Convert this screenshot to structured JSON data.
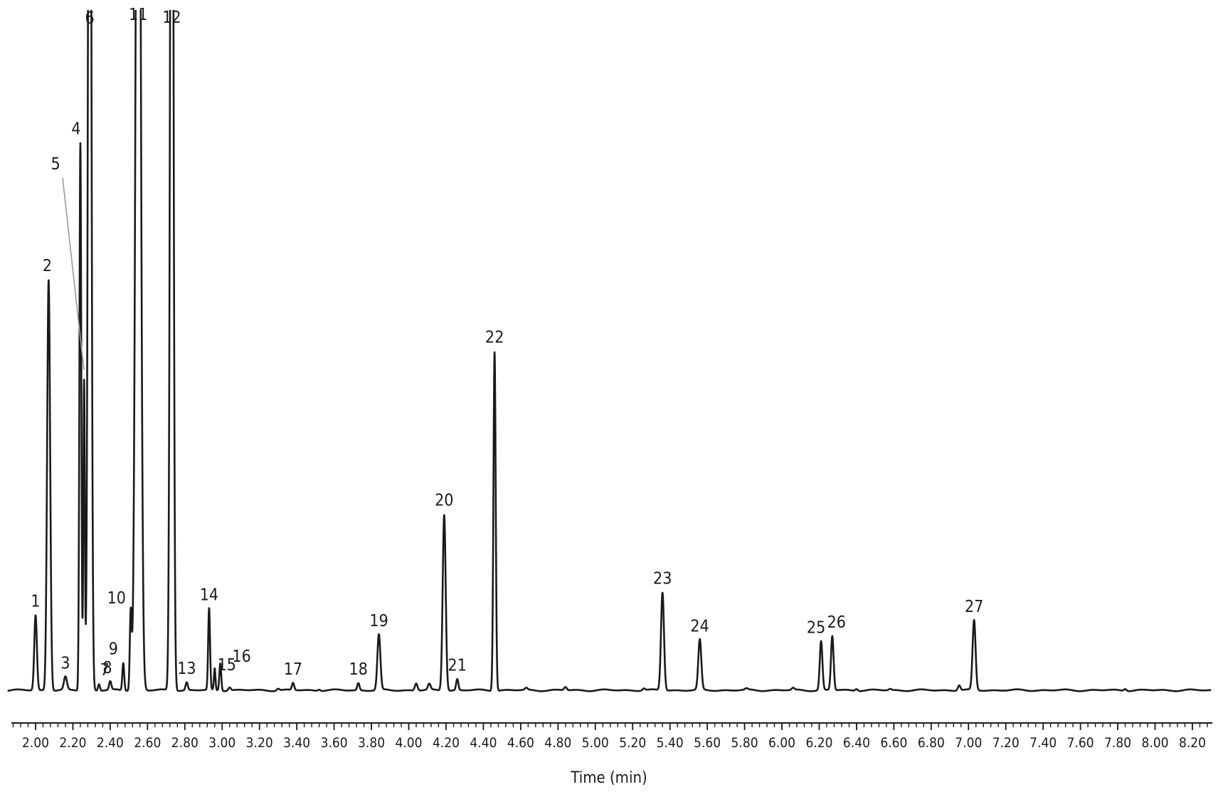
{
  "chart_data": {
    "type": "line",
    "title": "",
    "xlabel": "Time (min)",
    "ylabel": "",
    "xlim": [
      1.85,
      8.3
    ],
    "ylim": [
      0,
      100
    ],
    "grid": false,
    "legend": "none",
    "x_ticks": [
      "2.00",
      "2.20",
      "2.40",
      "2.60",
      "2.80",
      "3.00",
      "3.20",
      "3.40",
      "3.60",
      "3.80",
      "4.00",
      "4.20",
      "4.40",
      "4.60",
      "4.80",
      "5.00",
      "5.20",
      "5.40",
      "5.60",
      "5.80",
      "6.00",
      "6.20",
      "6.40",
      "6.60",
      "6.80",
      "7.00",
      "7.20",
      "7.40",
      "7.60",
      "7.80",
      "8.00",
      "8.20"
    ],
    "x_minor_step": 0.04,
    "series": [
      {
        "peaks": [
          {
            "label": "1",
            "rt": 2.0,
            "height": 11.5,
            "width": 0.007
          },
          {
            "label": "2",
            "rt": 2.07,
            "height": 63.0,
            "width": 0.008
          },
          {
            "label": "3",
            "rt": 2.16,
            "height": 2.0,
            "width": 0.008
          },
          {
            "label": "4",
            "rt": 2.24,
            "height": 84.0,
            "width": 0.005
          },
          {
            "label": "5",
            "rt": 2.26,
            "height": 47.5,
            "width": 0.004
          },
          {
            "label": "6",
            "rt": 2.29,
            "height": 200,
            "width": 0.008
          },
          {
            "label": "7",
            "rt": 2.34,
            "height": 1.0,
            "width": 0.005
          },
          {
            "label": "8",
            "rt": 2.4,
            "height": 1.3,
            "width": 0.006
          },
          {
            "label": "9",
            "rt": 2.47,
            "height": 4.2,
            "width": 0.005
          },
          {
            "label": "10",
            "rt": 2.51,
            "height": 12.0,
            "width": 0.005
          },
          {
            "label": "11",
            "rt": 2.55,
            "height": 200,
            "width": 0.012
          },
          {
            "label": "12",
            "rt": 2.73,
            "height": 200,
            "width": 0.008
          },
          {
            "label": "13",
            "rt": 2.81,
            "height": 1.2,
            "width": 0.006
          },
          {
            "label": "14",
            "rt": 2.93,
            "height": 12.5,
            "width": 0.005
          },
          {
            "label": "15",
            "rt": 2.96,
            "height": 3.3,
            "width": 0.004
          },
          {
            "label": "16",
            "rt": 2.99,
            "height": 4.2,
            "width": 0.005
          },
          {
            "label": "17",
            "rt": 3.38,
            "height": 1.1,
            "width": 0.006
          },
          {
            "label": "18",
            "rt": 3.73,
            "height": 1.1,
            "width": 0.006
          },
          {
            "label": "19",
            "rt": 3.84,
            "height": 8.5,
            "width": 0.008
          },
          {
            "label": "20",
            "rt": 4.19,
            "height": 27.0,
            "width": 0.008
          },
          {
            "label": "21",
            "rt": 4.26,
            "height": 1.7,
            "width": 0.006
          },
          {
            "label": "22",
            "rt": 4.46,
            "height": 52.0,
            "width": 0.006
          },
          {
            "label": "23",
            "rt": 5.36,
            "height": 15.0,
            "width": 0.008
          },
          {
            "label": "24",
            "rt": 5.56,
            "height": 7.7,
            "width": 0.008
          },
          {
            "label": "25",
            "rt": 6.21,
            "height": 7.5,
            "width": 0.007
          },
          {
            "label": "26",
            "rt": 6.27,
            "height": 8.3,
            "width": 0.007
          },
          {
            "label": "27",
            "rt": 7.03,
            "height": 10.7,
            "width": 0.008
          }
        ],
        "minor_peaks": [
          {
            "rt": 3.04,
            "height": 0.5
          },
          {
            "rt": 3.3,
            "height": 0.3
          },
          {
            "rt": 3.52,
            "height": 0.2
          },
          {
            "rt": 4.04,
            "height": 1.1
          },
          {
            "rt": 4.11,
            "height": 0.9
          },
          {
            "rt": 4.63,
            "height": 0.3
          },
          {
            "rt": 4.84,
            "height": 0.5
          },
          {
            "rt": 5.26,
            "height": 0.3
          },
          {
            "rt": 5.81,
            "height": 0.2
          },
          {
            "rt": 6.06,
            "height": 0.3
          },
          {
            "rt": 6.4,
            "height": 0.3
          },
          {
            "rt": 6.58,
            "height": 0.2
          },
          {
            "rt": 6.95,
            "height": 0.8
          },
          {
            "rt": 7.84,
            "height": 0.3
          }
        ]
      }
    ]
  }
}
